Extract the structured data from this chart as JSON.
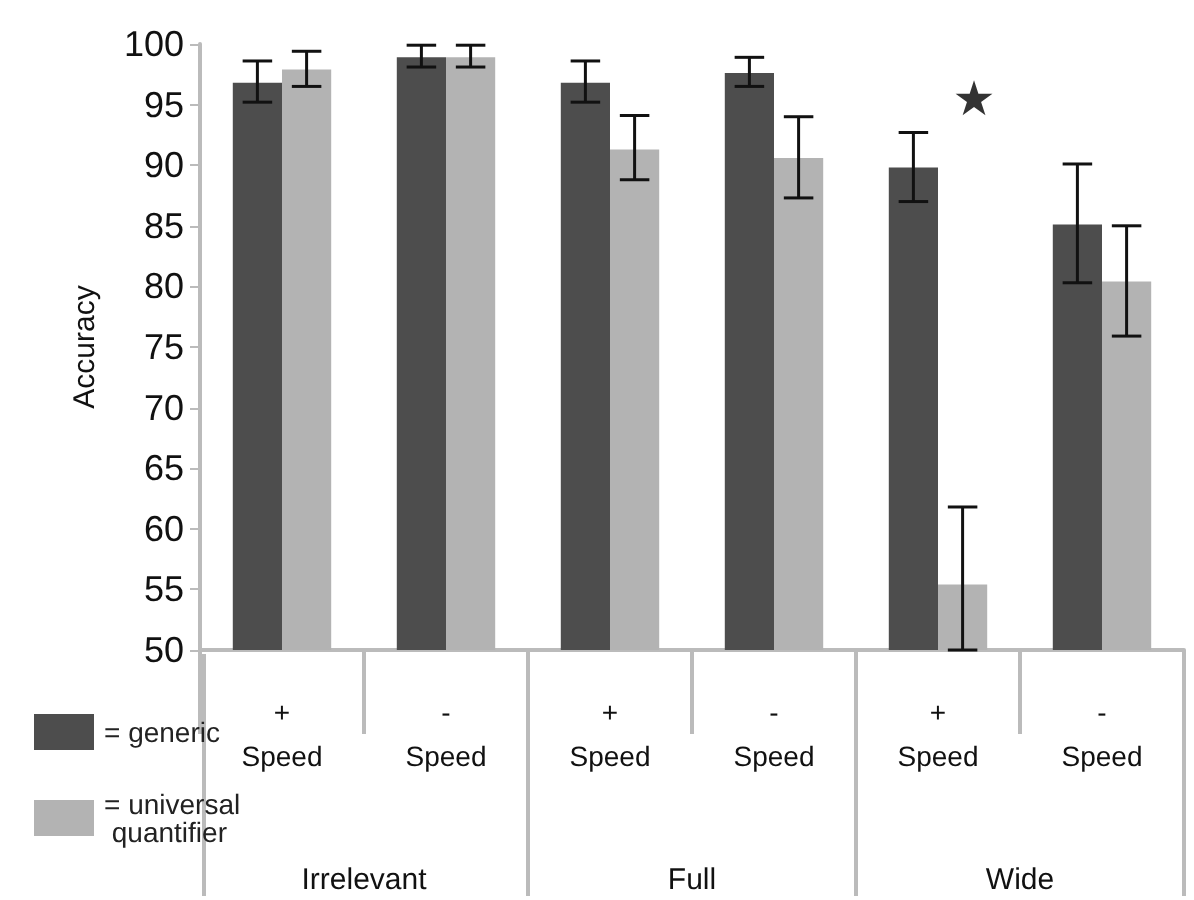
{
  "chart_data": {
    "type": "bar",
    "ylabel": "Accuracy",
    "categories": [
      "+\nSpeed",
      "-\nSpeed",
      "+\nSpeed",
      "-\nSpeed",
      "+\nSpeed",
      "-\nSpeed"
    ],
    "series": [
      {
        "name": "= generic",
        "color": "#4d4d4d",
        "values": [
          96.8,
          98.9,
          96.8,
          97.6,
          89.8,
          85.1
        ],
        "errors": [
          [
            95.2,
            98.6
          ],
          [
            98.1,
            99.9
          ],
          [
            95.2,
            98.6
          ],
          [
            96.5,
            98.9
          ],
          [
            87.0,
            92.7
          ],
          [
            80.3,
            90.1
          ]
        ]
      },
      {
        "name": "= universal quantifier",
        "color": "#b3b3b3",
        "values": [
          97.9,
          98.9,
          91.3,
          90.6,
          55.4,
          80.4
        ],
        "errors": [
          [
            96.5,
            99.4
          ],
          [
            98.1,
            99.9
          ],
          [
            88.8,
            94.1
          ],
          [
            87.3,
            94.0
          ],
          [
            50,
            61.8
          ],
          [
            75.9,
            85.0
          ]
        ]
      }
    ],
    "ylim": [
      50,
      100
    ],
    "yticks": [
      50,
      55,
      60,
      65,
      70,
      75,
      80,
      85,
      90,
      95,
      100
    ],
    "annotations": [
      "Irrelevant",
      "Full",
      "Wide",
      "★"
    ],
    "grid": false,
    "legend": "bottom left"
  }
}
